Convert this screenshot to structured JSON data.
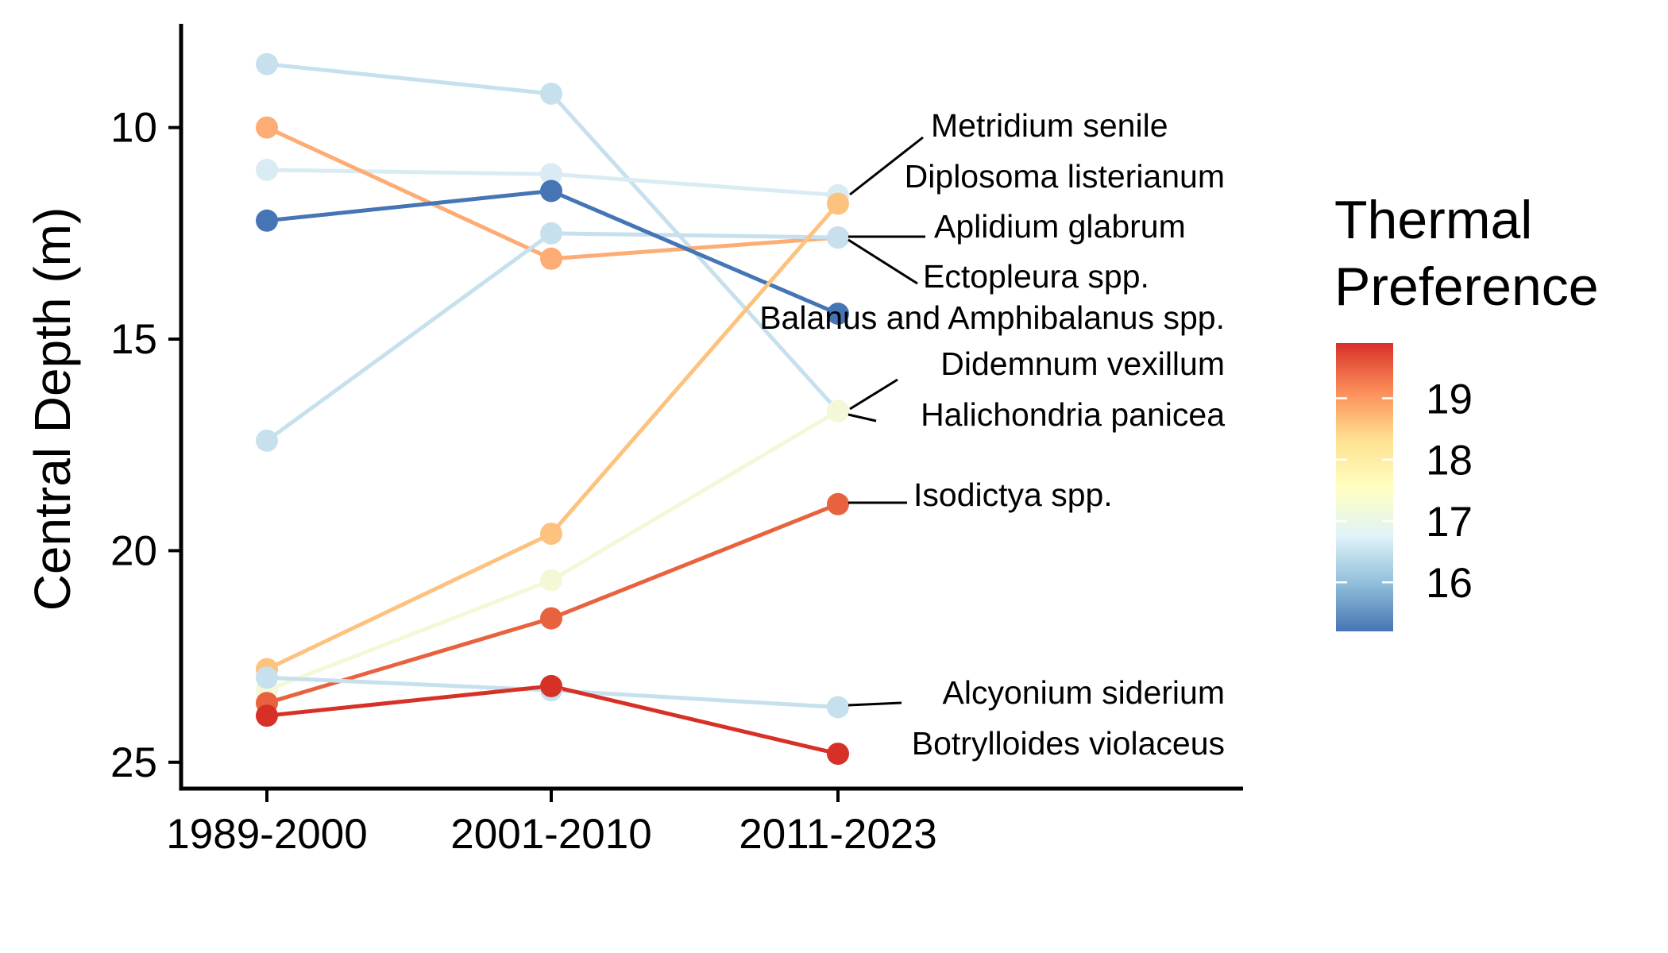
{
  "chart_data": {
    "type": "line",
    "title": "",
    "xlabel": "",
    "ylabel": "Central Depth (m)",
    "categories": [
      "1989-2000",
      "2001-2010",
      "2011-2023"
    ],
    "y_axis": {
      "reversed": true,
      "ylim": [
        7.3,
        25.6
      ],
      "ticks": [
        10,
        15,
        20,
        25
      ],
      "tick_labels": [
        "10",
        "15",
        "20",
        "25"
      ]
    },
    "grid": false,
    "legend": {
      "title_lines": [
        "Thermal",
        "Preference"
      ],
      "placement": "right",
      "type": "colorbar",
      "range": [
        15.2,
        19.9
      ],
      "ticks": [
        16,
        17,
        18,
        19
      ],
      "tick_labels": [
        "16",
        "17",
        "18",
        "19"
      ],
      "colormap": [
        "#4575b4",
        "#91bfdb",
        "#e0f3f8",
        "#ffffbf",
        "#fee090",
        "#fc8d59",
        "#d73027"
      ]
    },
    "series": [
      {
        "name": "Metridium senile",
        "values": [
          8.5,
          9.2,
          16.7
        ],
        "thermal": 16.1,
        "color": "#c6e0ee"
      },
      {
        "name": "Diplosoma listerianum",
        "values": [
          11.0,
          11.1,
          11.6
        ],
        "thermal": 16.6,
        "color": "#d9ecf3"
      },
      {
        "name": "Aplidium glabrum",
        "values": [
          10.0,
          13.1,
          12.6
        ],
        "thermal": 18.6,
        "color": "#fdac74"
      },
      {
        "name": "Ectopleura spp.",
        "values": [
          17.4,
          12.5,
          12.6
        ],
        "thermal": 16.2,
        "color": "#c6e0ee"
      },
      {
        "name": "Balanus and Amphibalanus spp.",
        "values": [
          12.2,
          11.5,
          14.4
        ],
        "thermal": 15.3,
        "color": "#4575b4"
      },
      {
        "name": "Didemnum vexillum",
        "values": [
          22.8,
          19.6,
          11.8
        ],
        "thermal": 18.2,
        "color": "#fec27f"
      },
      {
        "name": "Halichondria panicea",
        "values": [
          23.3,
          20.7,
          16.7
        ],
        "thermal": 17.3,
        "color": "#f4f8d6"
      },
      {
        "name": "Isodictya spp.",
        "values": [
          23.6,
          21.6,
          18.9
        ],
        "thermal": 19.4,
        "color": "#e8623f"
      },
      {
        "name": "Alcyonium siderium",
        "values": [
          23.0,
          23.3,
          23.7
        ],
        "thermal": 16.1,
        "color": "#c6e0ee"
      },
      {
        "name": "Botrylloides violaceus",
        "values": [
          23.9,
          23.2,
          24.8
        ],
        "thermal": 19.9,
        "color": "#d73027"
      }
    ],
    "annotations": [
      {
        "text": "Metridium senile",
        "series": "Metridium senile"
      },
      {
        "text": "Diplosoma listerianum",
        "series": "Diplosoma listerianum"
      },
      {
        "text": "Aplidium glabrum",
        "series": "Aplidium glabrum"
      },
      {
        "text": "Ectopleura spp.",
        "series": "Ectopleura spp."
      },
      {
        "text": "Balanus and Amphibalanus spp.",
        "series": "Balanus and Amphibalanus spp."
      },
      {
        "text": "Didemnum vexillum",
        "series": "Didemnum vexillum"
      },
      {
        "text": "Halichondria panicea",
        "series": "Halichondria panicea"
      },
      {
        "text": "Isodictya spp.",
        "series": "Isodictya spp."
      },
      {
        "text": "Alcyonium siderium",
        "series": "Alcyonium siderium"
      },
      {
        "text": "Botrylloides violaceus",
        "series": "Botrylloides violaceus"
      }
    ]
  }
}
